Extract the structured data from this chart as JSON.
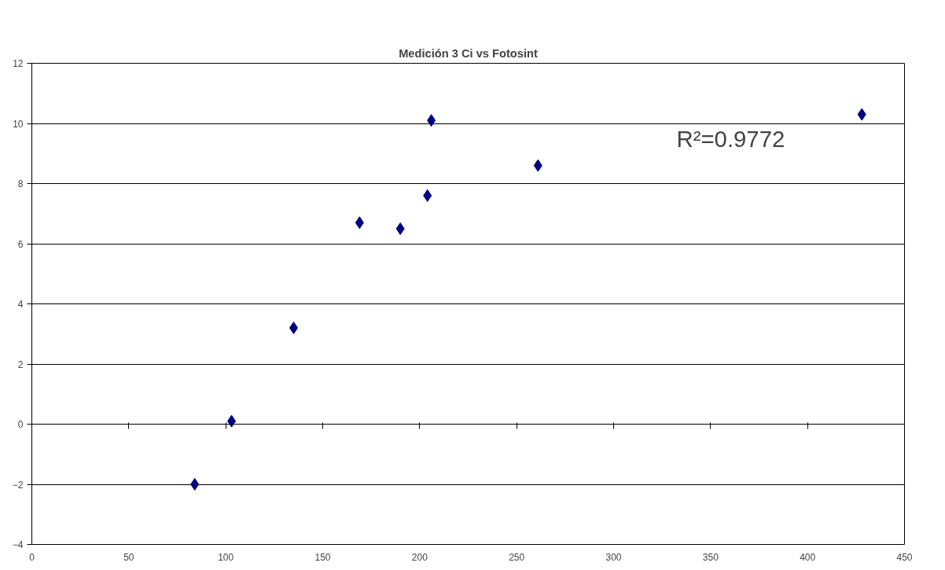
{
  "chart_data": {
    "type": "scatter",
    "title": "Medición 3 Ci vs Fotosint",
    "x": [
      84,
      103,
      135,
      169,
      190,
      204,
      206,
      261,
      428
    ],
    "series": [
      {
        "color": "#000080",
        "values": [
          -2.0,
          0.1,
          3.2,
          6.7,
          6.5,
          7.6,
          10.1,
          8.6,
          10.3
        ]
      }
    ],
    "xlim": [
      0,
      450
    ],
    "xticks": [
      0,
      50,
      100,
      150,
      200,
      250,
      300,
      350,
      400,
      450
    ],
    "ylim": [
      -4,
      12
    ],
    "yticks": [
      -4,
      -2,
      0,
      2,
      4,
      6,
      8,
      10,
      12
    ],
    "grid": "y",
    "marker": "diamond",
    "annotations": [
      "R²=0.9772"
    ]
  }
}
